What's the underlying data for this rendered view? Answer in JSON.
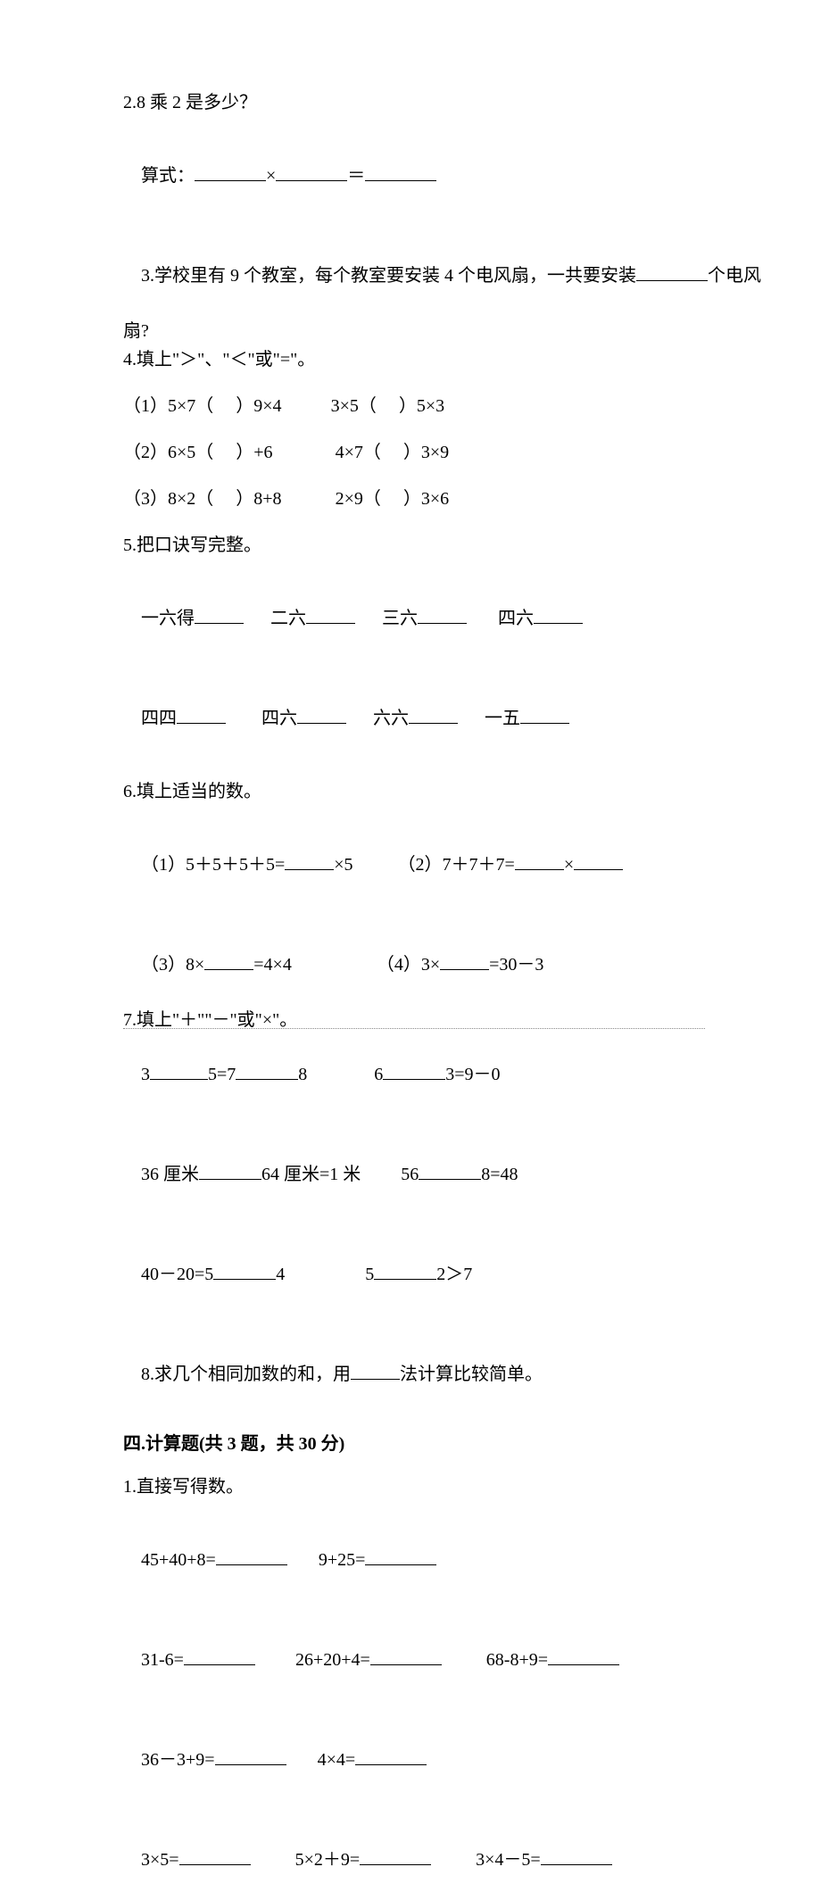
{
  "doc": {
    "font_family": "SimSun",
    "font_size_pt": 15,
    "text_color": "#000000",
    "background_color": "#ffffff"
  },
  "q2": {
    "title": "2.8 乘 2 是多少？",
    "label": "算式：",
    "op1": "×",
    "op2": "＝"
  },
  "q3": {
    "line1": "3.学校里有 9 个教室，每个教室要安装 4 个电风扇，一共要安装",
    "line1_tail": "个电风",
    "line2": "扇?"
  },
  "q4": {
    "title": "4.填上\"＞\"、\"＜\"或\"=\"。",
    "r1a": "（1）5×7（     ）9×4",
    "r1b": "3×5（     ）5×3",
    "r2a": "（2）6×5（     ）+6",
    "r2b": "4×7（     ）3×9",
    "r3a": "（3）8×2（     ）8+8",
    "r3b": "2×9（     ）3×6"
  },
  "q5": {
    "title": "5.把口诀写完整。",
    "a1": "一六得",
    "a2": "二六",
    "a3": "三六",
    "a4": "四六",
    "b1": "四四",
    "b2": "四六",
    "b3": "六六",
    "b4": "一五"
  },
  "q6": {
    "title": "6.填上适当的数。",
    "r1a_pre": "（1）5＋5＋5＋5=",
    "r1a_post": "×5",
    "r1b_pre": "（2）7＋7＋7=",
    "r1b_mid": "×",
    "r2a_pre": "（3）8×",
    "r2a_post": "=4×4",
    "r2b_pre": "（4）3×",
    "r2b_post": "=30－3"
  },
  "q7": {
    "title": "7.填上\"＋\"\"－\"或\"×\"。",
    "r1a_1": "3",
    "r1a_2": "5=7",
    "r1a_3": "8",
    "r1b_1": "6",
    "r1b_2": "3=9－0",
    "r2a_1": "36 厘米",
    "r2a_2": "64 厘米=1 米",
    "r2b_1": "56",
    "r2b_2": "8=48",
    "r3a_1": "40－20=5",
    "r3a_2": "4",
    "r3b_1": "5",
    "r3b_2": "2＞7"
  },
  "q8": {
    "pre": "8.求几个相同加数的和，用",
    "post": "法计算比较简单。"
  },
  "sec4": {
    "title": "四.计算题(共 3 题，共 30 分)"
  },
  "c1": {
    "title": "1.直接写得数。",
    "r1a": "45+40+8=",
    "r1b": "9+25=",
    "r2a": "31-6=",
    "r2b": "26+20+4=",
    "r2c": "68-8+9=",
    "r3a": "36－3+9=",
    "r3b": "4×4=",
    "r4a": "3×5=",
    "r4b": "5×2＋9=",
    "r4c": "3×4－5="
  }
}
